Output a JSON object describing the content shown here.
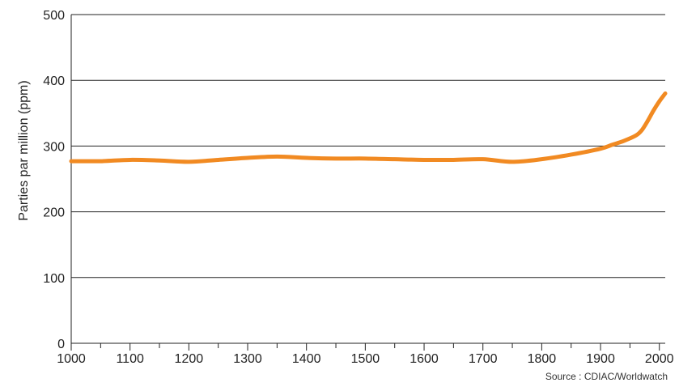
{
  "chart_data": {
    "type": "line",
    "title": "",
    "xlabel": "",
    "ylabel": "Parties par million (ppm)",
    "xlim": [
      1000,
      2010
    ],
    "ylim": [
      0,
      500
    ],
    "x_ticks": [
      1000,
      1100,
      1200,
      1300,
      1400,
      1500,
      1600,
      1700,
      1800,
      1900,
      2000
    ],
    "x_minor_ticks": [
      1050,
      1150,
      1250,
      1350,
      1450,
      1550,
      1650,
      1750,
      1850,
      1950
    ],
    "y_ticks": [
      0,
      100,
      200,
      300,
      400,
      500
    ],
    "grid": "horizontal",
    "series": [
      {
        "color": "#f18a22",
        "x": [
          1000,
          1050,
          1100,
          1150,
          1200,
          1250,
          1300,
          1350,
          1400,
          1450,
          1500,
          1550,
          1600,
          1650,
          1700,
          1750,
          1800,
          1850,
          1900,
          1920,
          1940,
          1960,
          1970,
          1980,
          1990,
          2000,
          2010
        ],
        "y": [
          277,
          277,
          279,
          278,
          276,
          279,
          282,
          284,
          282,
          281,
          281,
          280,
          279,
          279,
          280,
          276,
          280,
          287,
          296,
          302,
          308,
          316,
          324,
          338,
          354,
          368,
          380
        ]
      }
    ],
    "source": "Source : CDIAC/Worldwatch"
  }
}
